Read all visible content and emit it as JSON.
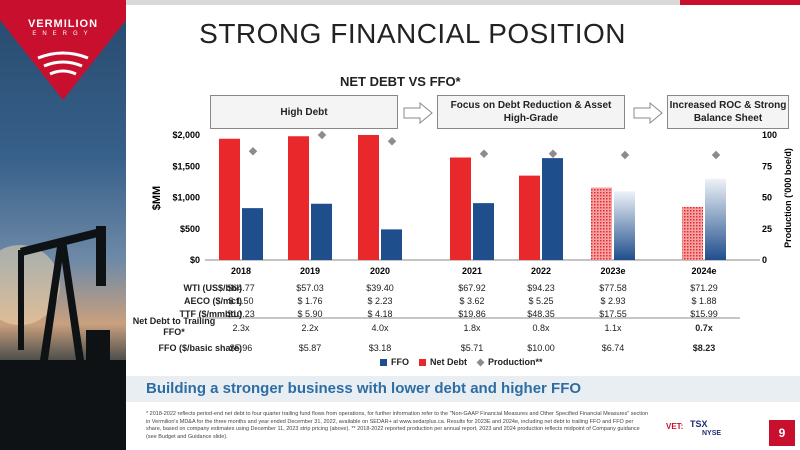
{
  "brand": {
    "name": "VERMILION",
    "sub": "ENERGY",
    "color": "#c8102e"
  },
  "page_title": "STRONG FINANCIAL POSITION",
  "chart_title": "NET DEBT VS FFO*",
  "phases": [
    "High Debt",
    "Focus on Debt Reduction & Asset High-Grade",
    "Increased ROC & Strong Balance Sheet"
  ],
  "chart_data": {
    "type": "bar",
    "title": "NET DEBT VS FFO*",
    "categories": [
      "2018",
      "2019",
      "2020",
      "2021",
      "2022",
      "2023e",
      "2024e"
    ],
    "ylabel": "$MM",
    "y2label": "Production ('000 boe/d)",
    "ylim": [
      0,
      2000
    ],
    "y2lim": [
      0,
      100
    ],
    "yticks": [
      "$0",
      "$500",
      "$1,000",
      "$1,500",
      "$2,000"
    ],
    "y2ticks": [
      "0",
      "25",
      "50",
      "75",
      "100"
    ],
    "series": [
      {
        "name": "FFO",
        "type": "bar",
        "color": "#1f4e8c",
        "values": [
          830,
          900,
          490,
          910,
          1630,
          1100,
          1300
        ]
      },
      {
        "name": "Net Debt",
        "type": "bar",
        "color": "#e8282b",
        "values": [
          1940,
          1980,
          2000,
          1640,
          1350,
          1160,
          850
        ]
      },
      {
        "name": "Production**",
        "type": "scatter",
        "axis": "y2",
        "color": "#8c8c8c",
        "values": [
          87,
          100,
          95,
          85,
          85,
          84,
          84
        ]
      }
    ],
    "legend": [
      "FFO",
      "Net Debt",
      "Production**"
    ],
    "legend_position": "bottom",
    "grid": false
  },
  "table": {
    "rows": [
      {
        "label": "WTI (US$/bbl)",
        "values": [
          "$64.77",
          "$57.03",
          "$39.40",
          "$67.92",
          "$94.23",
          "$77.58",
          "$71.29"
        ]
      },
      {
        "label": "AECO ($/mcf)",
        "values": [
          "$  1.50",
          "$  1.76",
          "$  2.23",
          "$  3.62",
          "$  5.25",
          "$  2.93",
          "$  1.88"
        ]
      },
      {
        "label": "TTF ($/mmbtu)",
        "values": [
          "$10.23",
          "$  5.90",
          "$  4.18",
          "$19.86",
          "$48.35",
          "$17.55",
          "$15.99"
        ]
      },
      {
        "label": "Net Debt to Trailing FFO*",
        "values": [
          "2.3x",
          "2.2x",
          "4.0x",
          "1.8x",
          "0.8x",
          "1.1x",
          "0.7x"
        ]
      },
      {
        "label": "FFO ($/basic share)",
        "values": [
          "$5.96",
          "$5.87",
          "$3.18",
          "$5.71",
          "$10.00",
          "$6.74",
          "$8.23"
        ]
      }
    ]
  },
  "banner": "Building a stronger business with lower debt and higher FFO",
  "footnote": "* 2018-2022 reflects period-end net debt to four quarter trailing fund flows from operations, for further information refer to the \"Non-GAAP Financial Measures and Other Specified Financial Measures\" section in Vermilion's MD&A for the three months and year ended December 31, 2022, available on SEDAR+ at www.sedarplus.ca. Results for 2023E and 2024e, including net debt to trailing FFO and FFO per share, based on company estimates using December 11, 2023 strip pricing (above). ** 2018-2022 reported production per annual report, 2023 and 2024 production reflects midpoint of Company guidance (see Budget and Guidance slide).",
  "ticker": {
    "vet": "VET:",
    "tsx": "TSX",
    "nyse": "NYSE"
  },
  "page_number": "9"
}
